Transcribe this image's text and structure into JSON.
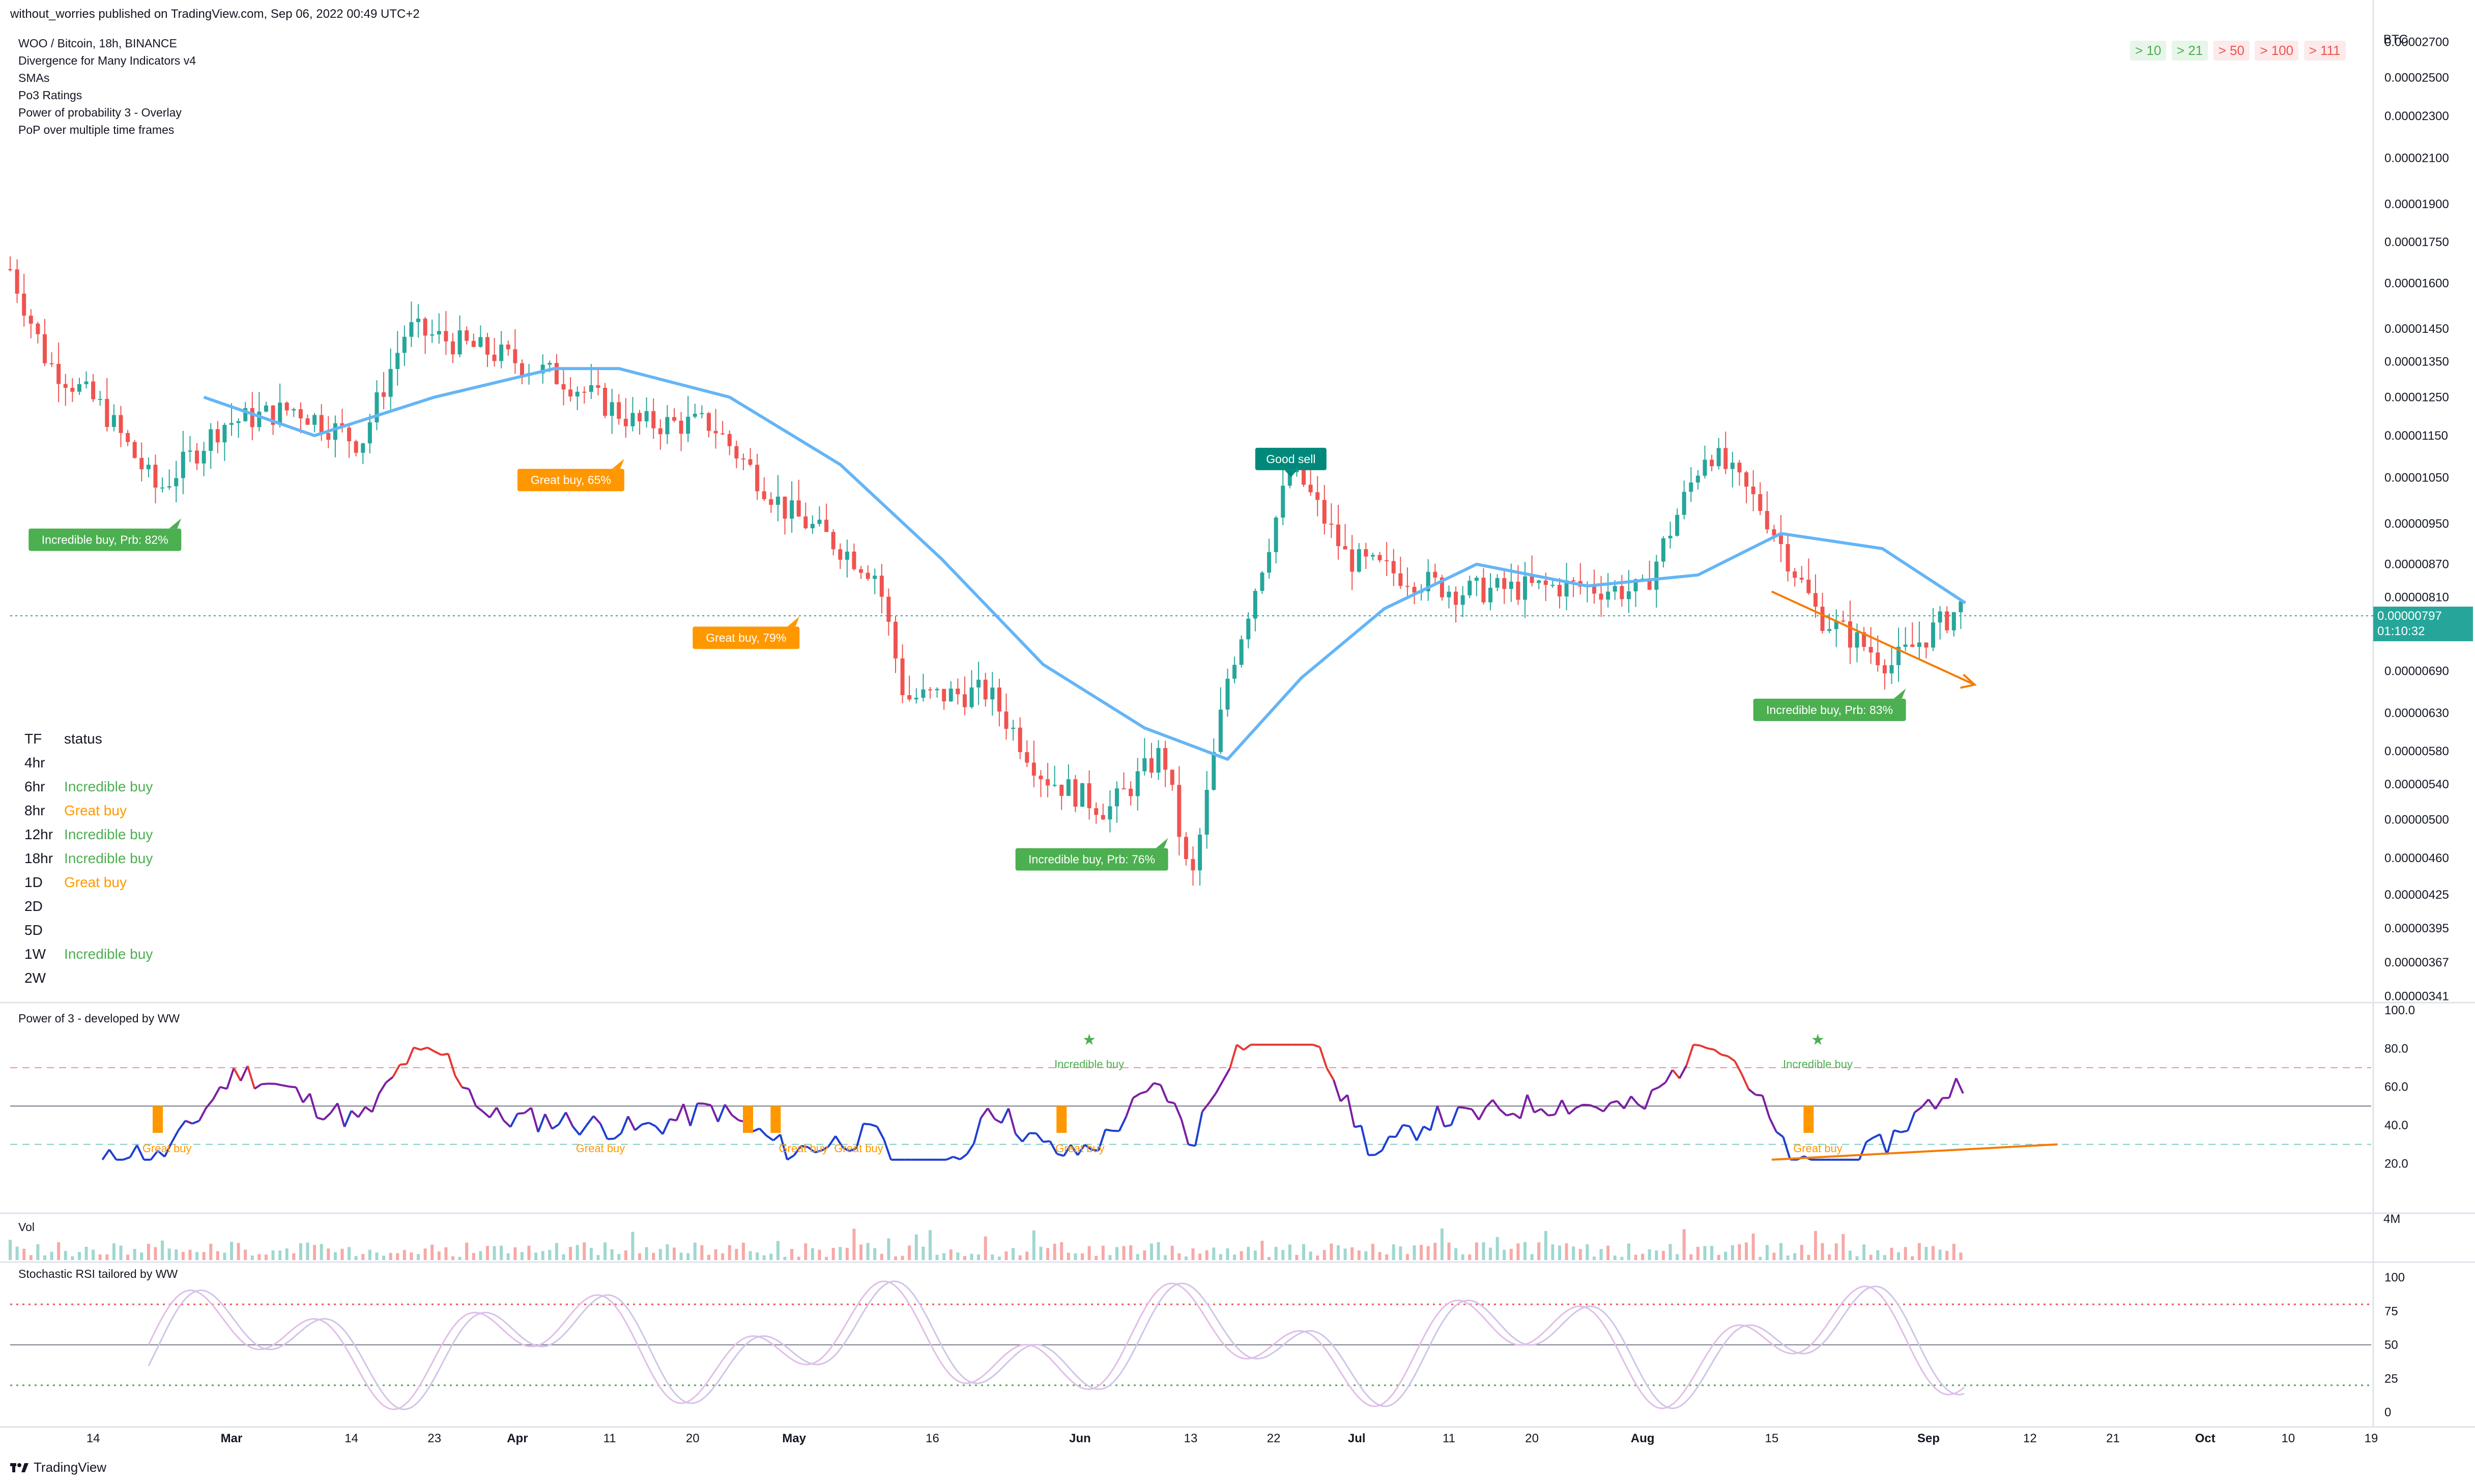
{
  "header": {
    "publisher": "without_worries published on TradingView.com, Sep 06, 2022 00:49 UTC+2",
    "symbol": "WOO / Bitcoin, 18h, BINANCE",
    "indicators": [
      "Divergence for Many Indicators v4",
      "SMAs",
      "Po3 Ratings",
      "Power of probability 3 - Overlay",
      "PoP over multiple time frames"
    ]
  },
  "top_right_pills": [
    {
      "label": "> 10",
      "color": "#4caf50"
    },
    {
      "label": "> 21",
      "color": "#4caf50"
    },
    {
      "label": "> 50",
      "color": "#ef5350"
    },
    {
      "label": "> 100",
      "color": "#ef5350"
    },
    {
      "label": "> 111",
      "color": "#ef5350"
    }
  ],
  "timeframe_table": {
    "header": [
      "TF",
      "status"
    ],
    "rows": [
      {
        "tf": "4hr",
        "status": ""
      },
      {
        "tf": "6hr",
        "status": "Incredible buy"
      },
      {
        "tf": "8hr",
        "status": "Great buy"
      },
      {
        "tf": "12hr",
        "status": "Incredible buy"
      },
      {
        "tf": "18hr",
        "status": "Incredible buy"
      },
      {
        "tf": "1D",
        "status": "Great buy"
      },
      {
        "tf": "2D",
        "status": ""
      },
      {
        "tf": "5D",
        "status": ""
      },
      {
        "tf": "1W",
        "status": "Incredible buy"
      },
      {
        "tf": "2W",
        "status": ""
      }
    ]
  },
  "price_panel": {
    "currency": "BTC",
    "last_price": "0.00000797",
    "countdown": "01:10:32",
    "y_ticks": [
      "0.00002700",
      "0.00002500",
      "0.00002300",
      "0.00002100",
      "0.00001900",
      "0.00001750",
      "0.00001600",
      "0.00001450",
      "0.00001350",
      "0.00001250",
      "0.00001150",
      "0.00001050",
      "0.00000950",
      "0.00000870",
      "0.00000810",
      "0.00000750",
      "0.00000690",
      "0.00000630",
      "0.00000580",
      "0.00000540",
      "0.00000500",
      "0.00000460",
      "0.00000425",
      "0.00000395",
      "0.00000367",
      "0.00000341"
    ],
    "callouts": [
      {
        "text": "Incredible buy, Prb: 82%",
        "color": "#4caf50"
      },
      {
        "text": "Great buy,  65%",
        "color": "#ff9800"
      },
      {
        "text": "Great buy,  79%",
        "color": "#ff9800"
      },
      {
        "text": "Incredible buy, Prb: 76%",
        "color": "#4caf50"
      },
      {
        "text": "Good sell",
        "color": "#00897b"
      },
      {
        "text": "Incredible buy, Prb: 83%",
        "color": "#4caf50"
      }
    ]
  },
  "po3_panel": {
    "title": "Power of 3 - developed by WW",
    "y_ticks": [
      "100.0",
      "80.0",
      "60.0",
      "40.0",
      "20.0"
    ],
    "labels": [
      {
        "text": "Great buy",
        "color": "#ff9800"
      },
      {
        "text": "Great buy",
        "color": "#ff9800"
      },
      {
        "text": "Great buy",
        "color": "#ff9800"
      },
      {
        "text": "Great buy",
        "color": "#ff9800"
      },
      {
        "text": "Great buy",
        "color": "#ff9800"
      },
      {
        "text": "Great buy",
        "color": "#ff9800"
      },
      {
        "text": "Incredible buy",
        "color": "#4caf50"
      },
      {
        "text": "Incredible buy",
        "color": "#4caf50"
      }
    ]
  },
  "vol_panel": {
    "title": "Vol",
    "y_tick": "4M"
  },
  "stoch_panel": {
    "title": "Stochastic RSI tailored by WW",
    "y_ticks": [
      "100",
      "75",
      "50",
      "25",
      "0"
    ]
  },
  "x_axis": {
    "labels": [
      "14",
      "Mar",
      "14",
      "23",
      "Apr",
      "11",
      "20",
      "May",
      "16",
      "Jun",
      "13",
      "22",
      "Jul",
      "11",
      "20",
      "Aug",
      "15",
      "Sep",
      "12",
      "21",
      "Oct",
      "10",
      "19"
    ]
  },
  "footer": {
    "brand": "TradingView"
  },
  "colors": {
    "up": "#26a69a",
    "down": "#ef5350",
    "sma": "#64b5f6",
    "arrow": "#f57c00",
    "po3_line_purple": "#7b1fa2",
    "po3_line_blue": "#1e3fd1",
    "po3_line_red": "#e53935"
  },
  "chart_data": {
    "type": "candlestick",
    "title": "WOO / Bitcoin, 18h, BINANCE",
    "x_range": [
      "2022-02-05",
      "2022-10-19"
    ],
    "y_scale": "log",
    "ylim": [
      3.4e-06,
      2.83e-05
    ],
    "sma_series": [
      {
        "date": "2022-02-26",
        "value": 1.25e-05
      },
      {
        "date": "2022-03-10",
        "value": 1.15e-05
      },
      {
        "date": "2022-03-23",
        "value": 1.25e-05
      },
      {
        "date": "2022-04-05",
        "value": 1.33e-05
      },
      {
        "date": "2022-04-12",
        "value": 1.33e-05
      },
      {
        "date": "2022-04-24",
        "value": 1.25e-05
      },
      {
        "date": "2022-05-06",
        "value": 1.08e-05
      },
      {
        "date": "2022-05-17",
        "value": 8.8e-06
      },
      {
        "date": "2022-05-28",
        "value": 7e-06
      },
      {
        "date": "2022-06-08",
        "value": 6.1e-06
      },
      {
        "date": "2022-06-17",
        "value": 5.7e-06
      },
      {
        "date": "2022-06-25",
        "value": 6.8e-06
      },
      {
        "date": "2022-07-04",
        "value": 7.9e-06
      },
      {
        "date": "2022-07-14",
        "value": 8.7e-06
      },
      {
        "date": "2022-07-26",
        "value": 8.3e-06
      },
      {
        "date": "2022-08-07",
        "value": 8.5e-06
      },
      {
        "date": "2022-08-16",
        "value": 9.3e-06
      },
      {
        "date": "2022-08-27",
        "value": 9e-06
      },
      {
        "date": "2022-09-05",
        "value": 8e-06
      }
    ],
    "price_path": [
      {
        "date": "2022-02-05",
        "value": 1.65e-05
      },
      {
        "date": "2022-02-09",
        "value": 1.35e-05
      },
      {
        "date": "2022-02-15",
        "value": 1.22e-05
      },
      {
        "date": "2022-02-21",
        "value": 1.02e-05
      },
      {
        "date": "2022-02-28",
        "value": 1.18e-05
      },
      {
        "date": "2022-03-08",
        "value": 1.22e-05
      },
      {
        "date": "2022-03-15",
        "value": 1.13e-05
      },
      {
        "date": "2022-03-20",
        "value": 1.45e-05
      },
      {
        "date": "2022-03-30",
        "value": 1.37e-05
      },
      {
        "date": "2022-04-06",
        "value": 1.3e-05
      },
      {
        "date": "2022-04-14",
        "value": 1.18e-05
      },
      {
        "date": "2022-04-22",
        "value": 1.18e-05
      },
      {
        "date": "2022-04-30",
        "value": 9.8e-06
      },
      {
        "date": "2022-05-04",
        "value": 9.3e-06
      },
      {
        "date": "2022-05-10",
        "value": 8.5e-06
      },
      {
        "date": "2022-05-13",
        "value": 6.5e-06
      },
      {
        "date": "2022-05-22",
        "value": 6.6e-06
      },
      {
        "date": "2022-05-28",
        "value": 5.5e-06
      },
      {
        "date": "2022-06-04",
        "value": 5.1e-06
      },
      {
        "date": "2022-06-10",
        "value": 5.8e-06
      },
      {
        "date": "2022-06-13",
        "value": 4.3e-06
      },
      {
        "date": "2022-06-17",
        "value": 6.8e-06
      },
      {
        "date": "2022-06-24",
        "value": 1.08e-05
      },
      {
        "date": "2022-06-30",
        "value": 8.8e-06
      },
      {
        "date": "2022-07-12",
        "value": 8.2e-06
      },
      {
        "date": "2022-07-24",
        "value": 8.3e-06
      },
      {
        "date": "2022-08-01",
        "value": 8.2e-06
      },
      {
        "date": "2022-08-08",
        "value": 1.12e-05
      },
      {
        "date": "2022-08-14",
        "value": 9.8e-06
      },
      {
        "date": "2022-08-20",
        "value": 7.8e-06
      },
      {
        "date": "2022-08-28",
        "value": 7e-06
      },
      {
        "date": "2022-09-05",
        "value": 8e-06
      }
    ],
    "trendline": {
      "from": {
        "date": "2022-08-15",
        "value": 8.2e-06
      },
      "to": {
        "date": "2022-09-06",
        "value": 6.7e-06
      }
    }
  }
}
